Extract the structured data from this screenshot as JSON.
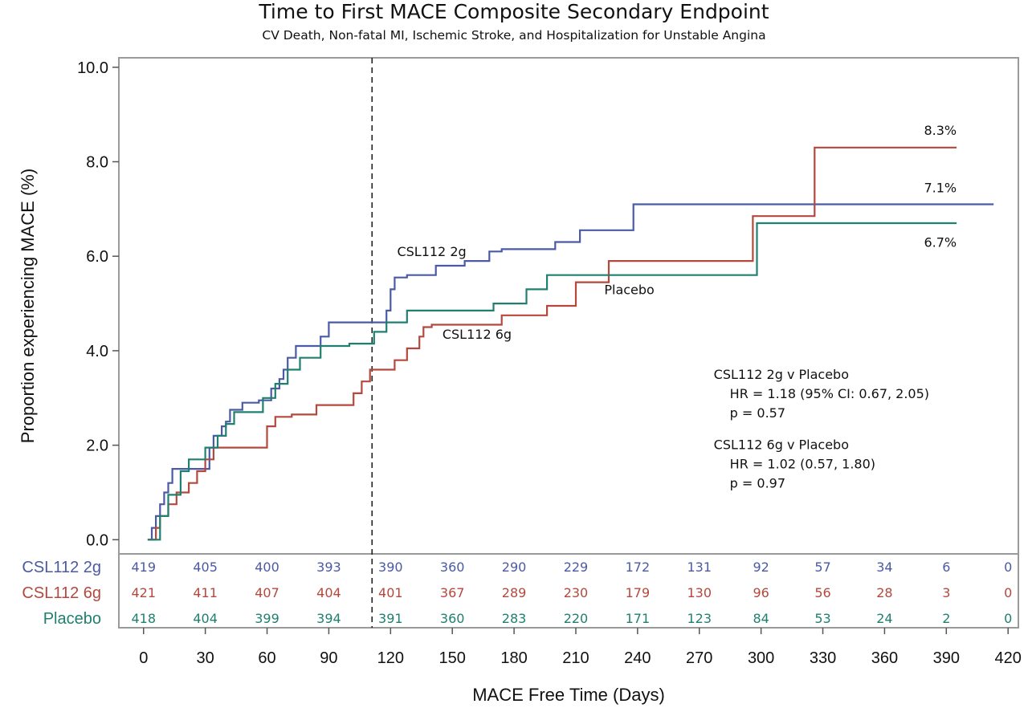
{
  "chart_data": {
    "type": "line",
    "title": "Time to First MACE Composite Secondary Endpoint",
    "subtitle": "CV Death, Non-fatal MI, Ischemic Stroke, and Hospitalization for Unstable Angina",
    "xlabel": "MACE Free Time (Days)",
    "ylabel": "Proportion experiencing MACE (%)",
    "xlim": [
      -12,
      425
    ],
    "ylim": [
      -0.3,
      10.2
    ],
    "xticks": [
      0,
      30,
      60,
      90,
      120,
      150,
      180,
      210,
      240,
      270,
      300,
      330,
      360,
      390,
      420
    ],
    "yticks": [
      "0.0",
      "2.0",
      "4.0",
      "6.0",
      "8.0",
      "10.0"
    ],
    "ytick_values": [
      0,
      2,
      4,
      6,
      8,
      10
    ],
    "reference_line_x": 111,
    "series": [
      {
        "name": "CSL112 2g",
        "color": "#4a5aa5",
        "label": "CSL112 2g",
        "end_label": "7.1%",
        "x": [
          2,
          4,
          6,
          8,
          10,
          12,
          14,
          32,
          34,
          38,
          40,
          42,
          48,
          52,
          56,
          62,
          66,
          68,
          70,
          74,
          76,
          86,
          90,
          110,
          118,
          120,
          122,
          128,
          136,
          142,
          156,
          168,
          174,
          186,
          200,
          212,
          238,
          413
        ],
        "y": [
          0,
          0.25,
          0.5,
          0.75,
          1.0,
          1.2,
          1.5,
          1.95,
          2.2,
          2.4,
          2.5,
          2.75,
          2.9,
          2.9,
          2.95,
          3.2,
          3.4,
          3.6,
          3.85,
          4.1,
          4.1,
          4.3,
          4.6,
          4.6,
          4.85,
          5.3,
          5.55,
          5.6,
          5.6,
          5.8,
          5.9,
          6.1,
          6.15,
          6.15,
          6.3,
          6.55,
          7.1,
          7.1
        ]
      },
      {
        "name": "CSL112 6g",
        "color": "#b5483d",
        "label": "CSL112 6g",
        "end_label": "8.3%",
        "x": [
          2,
          6,
          8,
          12,
          16,
          22,
          26,
          30,
          34,
          50,
          60,
          64,
          72,
          84,
          102,
          106,
          110,
          122,
          128,
          134,
          136,
          140,
          144,
          174,
          186,
          196,
          210,
          226,
          230,
          296,
          326,
          395
        ],
        "y": [
          0,
          0.25,
          0.5,
          0.75,
          1.0,
          1.2,
          1.45,
          1.7,
          1.95,
          1.95,
          2.4,
          2.6,
          2.65,
          2.85,
          3.1,
          3.35,
          3.6,
          3.8,
          4.05,
          4.3,
          4.5,
          4.55,
          4.55,
          4.75,
          4.75,
          4.95,
          5.45,
          5.9,
          5.9,
          6.85,
          8.3,
          8.3
        ]
      },
      {
        "name": "Placebo",
        "color": "#1f8070",
        "label": "Placebo",
        "end_label": "6.7%",
        "x": [
          2,
          8,
          12,
          18,
          22,
          30,
          36,
          40,
          44,
          50,
          58,
          64,
          70,
          76,
          86,
          100,
          110,
          112,
          118,
          128,
          136,
          156,
          170,
          180,
          186,
          196,
          298,
          395
        ],
        "y": [
          0,
          0.5,
          0.95,
          1.45,
          1.7,
          1.95,
          2.2,
          2.45,
          2.7,
          2.7,
          3.0,
          3.3,
          3.6,
          3.85,
          4.1,
          4.15,
          4.15,
          4.4,
          4.6,
          4.85,
          4.85,
          4.85,
          5.0,
          5.0,
          5.3,
          5.6,
          6.7,
          6.7
        ]
      }
    ],
    "annotations": [
      {
        "lines": [
          "CSL112 2g v Placebo",
          "HR = 1.18 (95% CI: 0.67, 2.05)",
          "p = 0.57"
        ]
      },
      {
        "lines": [
          "CSL112 6g v Placebo",
          "HR = 1.02 (0.57, 1.80)",
          "p = 0.97"
        ]
      }
    ],
    "risk_table": {
      "times": [
        0,
        30,
        60,
        90,
        120,
        150,
        180,
        210,
        240,
        270,
        300,
        330,
        360,
        390,
        420
      ],
      "rows": [
        {
          "name": "CSL112 2g",
          "color": "#4a5aa5",
          "values": [
            "419",
            "405",
            "400",
            "393",
            "390",
            "360",
            "290",
            "229",
            "172",
            "131",
            "92",
            "57",
            "34",
            "6",
            "0"
          ]
        },
        {
          "name": "CSL112 6g",
          "color": "#b5483d",
          "values": [
            "421",
            "411",
            "407",
            "404",
            "401",
            "367",
            "289",
            "230",
            "179",
            "130",
            "96",
            "56",
            "28",
            "3",
            "0"
          ]
        },
        {
          "name": "Placebo",
          "color": "#1f8070",
          "values": [
            "418",
            "404",
            "399",
            "394",
            "391",
            "360",
            "283",
            "220",
            "171",
            "123",
            "84",
            "53",
            "24",
            "2",
            "0"
          ]
        }
      ]
    }
  }
}
